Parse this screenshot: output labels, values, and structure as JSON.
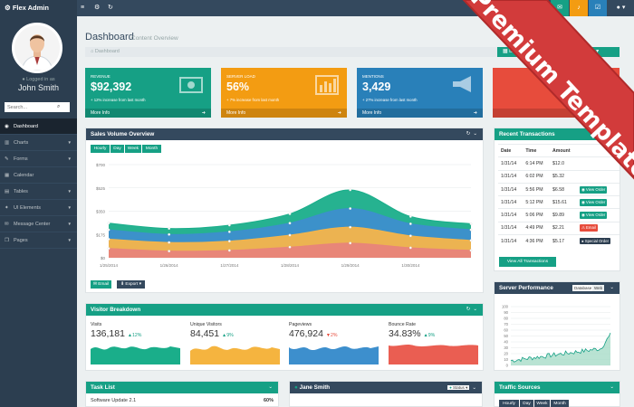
{
  "app": {
    "brand": "Flex Admin",
    "brand_icon": "cogs-icon"
  },
  "topbar": {
    "icons": [
      "menu-icon",
      "gear-icon",
      "refresh-icon"
    ],
    "right_buttons": [
      {
        "icon": "messages-icon",
        "color": "#16a085"
      },
      {
        "icon": "bell-icon",
        "color": "#f39c12"
      },
      {
        "icon": "tasks-icon",
        "color": "#2980b9"
      },
      {
        "icon": "user-icon",
        "color": "#34495e"
      }
    ]
  },
  "sidebar": {
    "logged_in": "Logged in as",
    "user_name": "John Smith",
    "search_placeholder": "Search...",
    "items": [
      {
        "label": "Dashboard",
        "icon": "dashboard-icon",
        "caret": false,
        "active": true
      },
      {
        "label": "Charts",
        "icon": "bar-chart-icon",
        "caret": true,
        "active": false
      },
      {
        "label": "Forms",
        "icon": "edit-icon",
        "caret": true,
        "active": false
      },
      {
        "label": "Calendar",
        "icon": "calendar-icon",
        "caret": false,
        "active": false
      },
      {
        "label": "Tables",
        "icon": "table-icon",
        "caret": true,
        "active": false
      },
      {
        "label": "UI Elements",
        "icon": "wrench-icon",
        "caret": true,
        "active": false
      },
      {
        "label": "Message Center",
        "icon": "inbox-icon",
        "caret": true,
        "active": false
      },
      {
        "label": "Pages",
        "icon": "files-icon",
        "caret": true,
        "active": false
      }
    ]
  },
  "header": {
    "title": "Dashboard",
    "subtitle": "Content Overview",
    "breadcrumb": "Dashboard",
    "date_range": "December 8, 2013 - January 6, 2014"
  },
  "ribbon": "Premium Template",
  "tiles": [
    {
      "label": "Revenue",
      "value": "$92,392",
      "note": "+ 12% increase from last month",
      "footer": "More Info",
      "color": "#16a085",
      "icon": "money-icon"
    },
    {
      "label": "Server Load",
      "value": "56%",
      "note": "+ 7% increase from last month",
      "footer": "More Info",
      "color": "#f39c12",
      "icon": "bar-chart-icon"
    },
    {
      "label": "Mentions",
      "value": "3,429",
      "note": "+ 27% increase from last month",
      "footer": "More Info",
      "color": "#2980b9",
      "icon": "bullhorn-icon"
    },
    {
      "label": "",
      "value": "",
      "note": "",
      "footer": "",
      "color": "#e74c3c",
      "icon": ""
    }
  ],
  "sales": {
    "title": "Sales Volume Overview",
    "tabs": [
      "Hourly",
      "Day",
      "Week",
      "Month"
    ],
    "email_label": "Email",
    "export_label": "Export"
  },
  "chart_data": {
    "type": "area",
    "title": "",
    "xlabel": "",
    "ylabel": "",
    "x": [
      "1/25/2014",
      "1/26/2014",
      "1/27/2014",
      "1/28/2014",
      "1/29/2014",
      "1/30/2014",
      "1/31/2014"
    ],
    "x_ticks": [
      "1/25/2014",
      "1/26/2014",
      "1/27/2014",
      "1/28/2014",
      "1/29/2014",
      "1/30/2014"
    ],
    "y_ticks": [
      0,
      175,
      350,
      525,
      700
    ],
    "y_tick_labels": [
      "$0",
      "$175",
      "$350",
      "$525",
      "$700"
    ],
    "ylim": [
      0,
      700
    ],
    "stacked": true,
    "grid": true,
    "series": [
      {
        "color": "#e8847a",
        "values": [
          70,
          50,
          55,
          80,
          110,
          75,
          55
        ]
      },
      {
        "color": "#f5b54a",
        "values": [
          70,
          65,
          70,
          90,
          120,
          90,
          75
        ]
      },
      {
        "color": "#3d8fcd",
        "values": [
          70,
          60,
          70,
          90,
          140,
          90,
          80
        ]
      },
      {
        "color": "#1aae8a",
        "values": [
          50,
          45,
          50,
          70,
          140,
          55,
          45
        ]
      }
    ]
  },
  "visitors": {
    "title": "Visitor Breakdown",
    "stats": [
      {
        "label": "Visits",
        "value": "136,181",
        "change": "12%",
        "trend": "up",
        "color": "#16a085"
      },
      {
        "label": "Unique Visitors",
        "value": "84,451",
        "change": "9%",
        "trend": "up",
        "color": "#f39c12"
      },
      {
        "label": "Pageviews",
        "value": "476,924",
        "change": "2%",
        "trend": "down",
        "color": "#2980b9"
      },
      {
        "label": "Bounce Rate",
        "value": "34.83%",
        "change": "9%",
        "trend": "up",
        "color": "#e74c3c"
      }
    ]
  },
  "transactions": {
    "title": "Recent Transactions",
    "columns": [
      "Date",
      "Time",
      "Amount",
      ""
    ],
    "rows": [
      {
        "date": "1/31/14",
        "time": "6:14 PM",
        "amount": "$12.0",
        "action": "",
        "color": ""
      },
      {
        "date": "1/31/14",
        "time": "6:02 PM",
        "amount": "$5.32",
        "action": "",
        "color": ""
      },
      {
        "date": "1/31/14",
        "time": "5:56 PM",
        "amount": "$6.58",
        "action": "View Order",
        "color": "#16a085"
      },
      {
        "date": "1/31/14",
        "time": "5:12 PM",
        "amount": "$15.61",
        "action": "View Order",
        "color": "#16a085"
      },
      {
        "date": "1/31/14",
        "time": "5:06 PM",
        "amount": "$9.89",
        "action": "View Order",
        "color": "#16a085"
      },
      {
        "date": "1/31/14",
        "time": "4:49 PM",
        "amount": "$2.21",
        "action": "Email",
        "color": "#e74c3c"
      },
      {
        "date": "1/31/14",
        "time": "4:36 PM",
        "amount": "$5.17",
        "action": "Special Order",
        "color": "#2c3e50"
      }
    ],
    "view_all": "View All Transactions"
  },
  "server": {
    "title": "Server Performance",
    "toggle": [
      "Database",
      "Web"
    ],
    "y_ticks": [
      0,
      10,
      20,
      30,
      40,
      50,
      60,
      70,
      80,
      90,
      100
    ]
  },
  "tasks": {
    "title": "Task List",
    "items": [
      {
        "label": "Software Update 2.1",
        "percent": "60%"
      }
    ]
  },
  "chat": {
    "name": "Jane Smith",
    "status_label": "Status"
  },
  "traffic": {
    "title": "Traffic Sources",
    "tabs": [
      "Hourly",
      "Day",
      "Week",
      "Month"
    ]
  }
}
